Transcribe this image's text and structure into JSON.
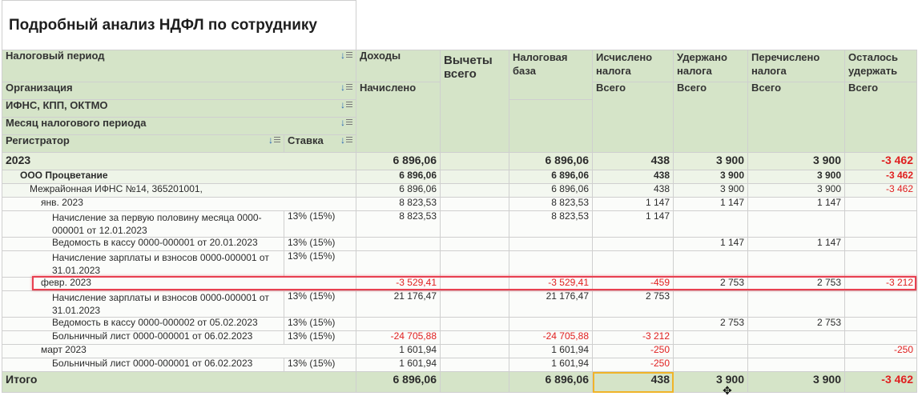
{
  "report": {
    "title": "Подробный анализ НДФЛ по сотруднику",
    "headers": {
      "period": "Налоговый период",
      "org": "Организация",
      "ifns": "ИФНС, КПП, ОКТМО",
      "month": "Месяц налогового периода",
      "registrar": "Регистратор",
      "rate": "Ставка",
      "income": "Доходы",
      "income_sub": "Начислено",
      "deductions": "Вычеты всего",
      "base": "Налоговая база",
      "calc": "Исчислено налога",
      "calc_sub": "Всего",
      "withheld": "Удержано налога",
      "withheld_sub": "Всего",
      "transferred": "Перечислено налога",
      "transferred_sub": "Всего",
      "remaining": "Осталось удержать",
      "remaining_sub": "Всего"
    },
    "rows": [
      {
        "label": "2023",
        "rate": "",
        "income": "6 896,06",
        "deductions": "",
        "base": "6 896,06",
        "calc": "438",
        "withheld": "3 900",
        "transferred": "3 900",
        "remaining": "-3 462"
      },
      {
        "label": "ООО Процветание",
        "rate": "",
        "income": "6 896,06",
        "deductions": "",
        "base": "6 896,06",
        "calc": "438",
        "withheld": "3 900",
        "transferred": "3 900",
        "remaining": "-3 462"
      },
      {
        "label": "Межрайонная ИФНС №14, 365201001,",
        "rate": "",
        "income": "6 896,06",
        "deductions": "",
        "base": "6 896,06",
        "calc": "438",
        "withheld": "3 900",
        "transferred": "3 900",
        "remaining": "-3 462"
      },
      {
        "label": "янв. 2023",
        "rate": "",
        "income": "8 823,53",
        "deductions": "",
        "base": "8 823,53",
        "calc": "1 147",
        "withheld": "1 147",
        "transferred": "1 147",
        "remaining": ""
      },
      {
        "label": "Начисление за первую половину месяца 0000-000001 от 12.01.2023",
        "rate": "13% (15%)",
        "income": "8 823,53",
        "deductions": "",
        "base": "8 823,53",
        "calc": "1 147",
        "withheld": "",
        "transferred": "",
        "remaining": ""
      },
      {
        "label": "Ведомость в кассу 0000-000001 от 20.01.2023",
        "rate": "13% (15%)",
        "income": "",
        "deductions": "",
        "base": "",
        "calc": "",
        "withheld": "1 147",
        "transferred": "1 147",
        "remaining": ""
      },
      {
        "label": "Начисление зарплаты и взносов 0000-000001 от 31.01.2023",
        "rate": "13% (15%)",
        "income": "",
        "deductions": "",
        "base": "",
        "calc": "",
        "withheld": "",
        "transferred": "",
        "remaining": ""
      },
      {
        "label": "февр. 2023",
        "rate": "",
        "income": "-3 529,41",
        "deductions": "",
        "base": "-3 529,41",
        "calc": "-459",
        "withheld": "2 753",
        "transferred": "2 753",
        "remaining": "-3 212"
      },
      {
        "label": "Начисление зарплаты и взносов 0000-000001 от 31.01.2023",
        "rate": "13% (15%)",
        "income": "21 176,47",
        "deductions": "",
        "base": "21 176,47",
        "calc": "2 753",
        "withheld": "",
        "transferred": "",
        "remaining": ""
      },
      {
        "label": "Ведомость в кассу 0000-000002 от 05.02.2023",
        "rate": "13% (15%)",
        "income": "",
        "deductions": "",
        "base": "",
        "calc": "",
        "withheld": "2 753",
        "transferred": "2 753",
        "remaining": ""
      },
      {
        "label": "Больничный лист 0000-000001 от 06.02.2023",
        "rate": "13% (15%)",
        "income": "-24 705,88",
        "deductions": "",
        "base": "-24 705,88",
        "calc": "-3 212",
        "withheld": "",
        "transferred": "",
        "remaining": ""
      },
      {
        "label": "март 2023",
        "rate": "",
        "income": "1 601,94",
        "deductions": "",
        "base": "1 601,94",
        "calc": "-250",
        "withheld": "",
        "transferred": "",
        "remaining": "-250"
      },
      {
        "label": "Больничный лист 0000-000001 от 06.02.2023",
        "rate": "13% (15%)",
        "income": "1 601,94",
        "deductions": "",
        "base": "1 601,94",
        "calc": "-250",
        "withheld": "",
        "transferred": "",
        "remaining": ""
      }
    ],
    "total": {
      "label": "Итого",
      "income": "6 896,06",
      "deductions": "",
      "base": "6 896,06",
      "calc": "438",
      "withheld": "3 900",
      "transferred": "3 900",
      "remaining": "-3 462"
    },
    "colors": {
      "header_bg": "#d5e4c8",
      "negative": "#e02020",
      "highlight": "#e84050",
      "selection": "#f0b429"
    }
  }
}
